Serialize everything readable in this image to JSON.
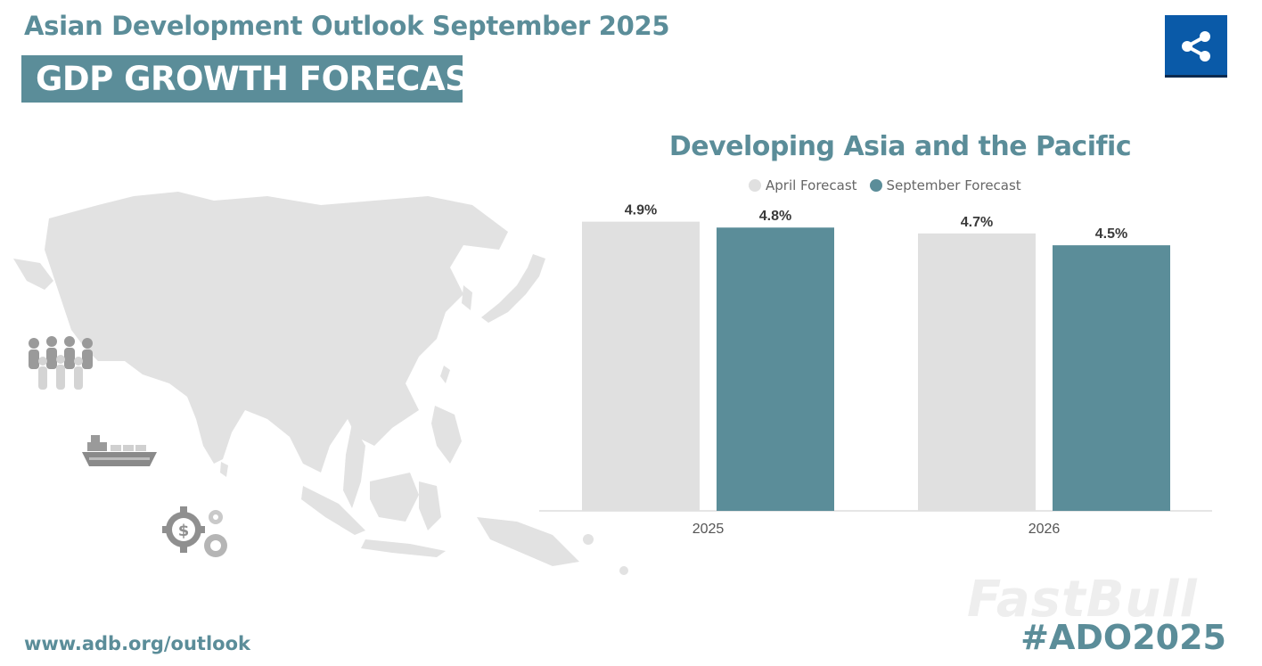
{
  "header": {
    "title": "Asian Development Outlook September 2025",
    "banner": "GDP GROWTH FORECAST"
  },
  "share": {
    "icon": "share-icon",
    "color": "#0a5aa8"
  },
  "map": {
    "icon": "asia-pacific-map-icon"
  },
  "side_icons": [
    "people-group-icon",
    "cargo-ship-icon",
    "finance-gears-icon"
  ],
  "chart_data": {
    "type": "bar",
    "title": "Developing Asia and the Pacific",
    "categories": [
      "2025",
      "2026"
    ],
    "series": [
      {
        "name": "April Forecast",
        "values": [
          4.9,
          4.7
        ],
        "color": "#e0e0e0"
      },
      {
        "name": "September Forecast",
        "values": [
          4.8,
          4.5
        ],
        "color": "#5b8d99"
      }
    ],
    "data_labels": [
      [
        "4.9%",
        "4.8%"
      ],
      [
        "4.7%",
        "4.5%"
      ]
    ],
    "ylim": [
      0,
      5.0
    ],
    "xlabel": "",
    "ylabel": "",
    "grid": false,
    "legend": "top"
  },
  "footer": {
    "url": "www.adb.org/outlook",
    "hashtag": "#ADO2025"
  },
  "watermark": "FastBull",
  "colors": {
    "accent": "#5b8d99",
    "april": "#e0e0e0",
    "september": "#5b8d99"
  }
}
